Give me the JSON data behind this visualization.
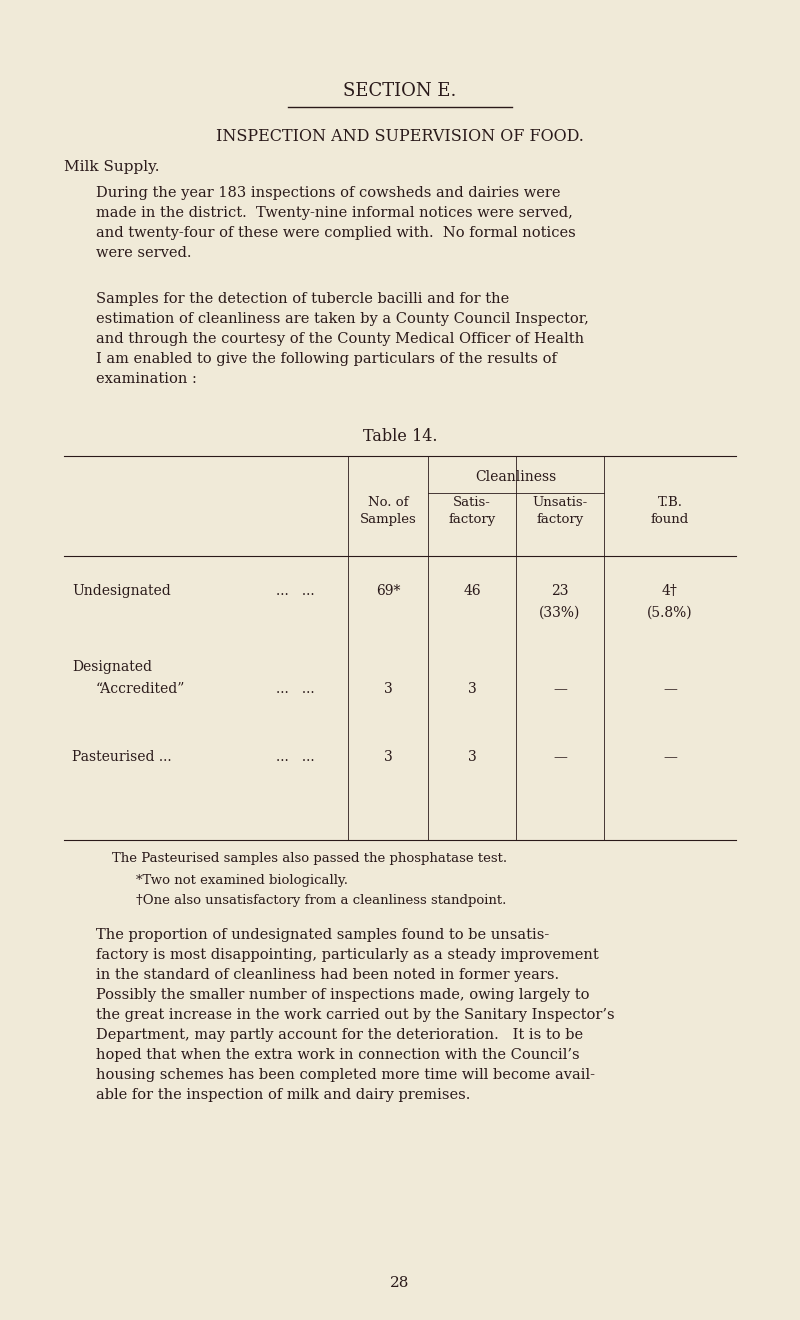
{
  "bg_color": "#f0ead8",
  "text_color": "#2a1a1a",
  "page_width": 8.0,
  "page_height": 13.2,
  "section_title": "SECTION E.",
  "main_title": "INSPECTION AND SUPERVISION OF FOOD.",
  "subtitle": "Milk Supply.",
  "para1": "During the year 183 inspections of cowsheds and dairies were\nmade in the district.  Twenty-nine informal notices were served,\nand twenty-four of these were complied with.  No formal notices\nwere served.",
  "para2": "Samples for the detection of tubercle bacilli and for the\nestimation of cleanliness are taken by a County Council Inspector,\nand through the courtesy of the County Medical Officer of Health\nI am enabled to give the following particulars of the results of\nexamination :",
  "table_title": "Table 14.",
  "table_headers_cleanliness": "Cleanliness",
  "table_col_no": "No. of\nSamples",
  "table_col_satis": "Satis-\nfactory",
  "table_col_unsatis": "Unsatis-\nfactory",
  "table_col_tb": "T.B.\nfound",
  "row1_label": "Undesignated",
  "row1_dots": "...   ...",
  "row1_samples": "69*",
  "row1_satis": "46",
  "row1_unsatis1": "23",
  "row1_unsatis2": "(33%)",
  "row1_tb1": "4†",
  "row1_tb2": "(5.8%)",
  "row2a_label": "Designated",
  "row2b_label": "“Accredited”",
  "row2_dots": "...   ...",
  "row2_samples": "3",
  "row2_satis": "3",
  "row2_unsatis": "—",
  "row2_tb": "—",
  "row3_label": "Pasteurised ...",
  "row3_dots": "...   ...",
  "row3_samples": "3",
  "row3_satis": "3",
  "row3_unsatis": "—",
  "row3_tb": "—",
  "footnote1": "The Pasteurised samples also passed the phosphatase test.",
  "footnote2": "*Two not examined biologically.",
  "footnote3": "†One also unsatisfactory from a cleanliness standpoint.",
  "para3": "The proportion of undesignated samples found to be unsatis-\nfactory is most disappointing, particularly as a steady improvement\nin the standard of cleanliness had been noted in former years.\nPossibly the smaller number of inspections made, owing largely to\nthe great increase in the work carried out by the Sanitary Inspector’s\nDepartment, may partly account for the deterioration.   It is to be\nhoped that when the extra work in connection with the Council’s\nhousing schemes has been completed more time will become avail-\nable for the inspection of milk and dairy premises.",
  "page_number": "28",
  "lm": 0.08,
  "rm": 0.92,
  "col0_r": 0.435,
  "col1_r": 0.535,
  "col2_r": 0.645,
  "col3_r": 0.755
}
